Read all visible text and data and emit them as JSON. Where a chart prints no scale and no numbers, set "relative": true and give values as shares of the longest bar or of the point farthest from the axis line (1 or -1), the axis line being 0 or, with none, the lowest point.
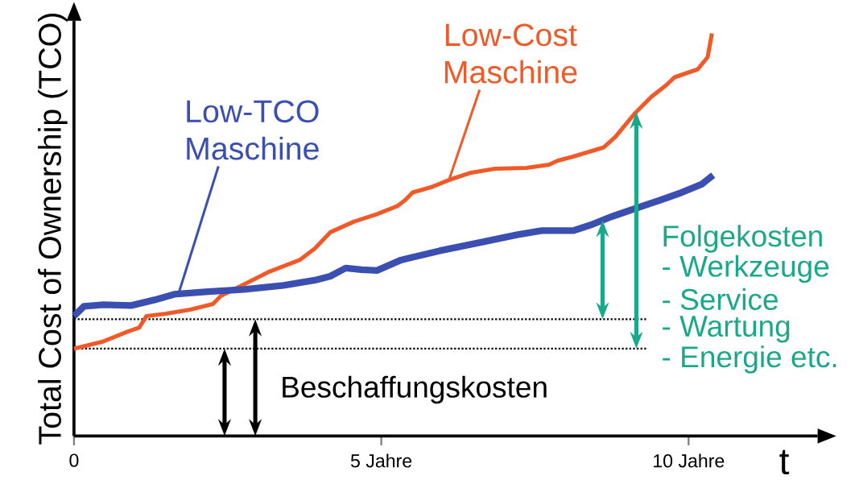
{
  "chart_data": {
    "type": "line",
    "relative": true,
    "ylabel": "Total Cost of Ownership (TCO)",
    "xlabel": "t",
    "xlim": [
      0,
      12.1
    ],
    "xticks": [
      {
        "value": 0,
        "label": "0"
      },
      {
        "value": 5,
        "label": "5 Jahre"
      },
      {
        "value": 10,
        "label": "10 Jahre"
      }
    ],
    "series": [
      {
        "name": "Low-Cost Maschine",
        "color": "#f05a28",
        "x": [
          0,
          0.48,
          0.87,
          1.06,
          1.18,
          1.5,
          1.89,
          2.26,
          2.39,
          2.77,
          3.16,
          3.67,
          3.92,
          4.17,
          4.55,
          4.93,
          5.26,
          5.38,
          5.51,
          5.83,
          6.14,
          6.46,
          6.85,
          7.36,
          7.73,
          7.87,
          8.12,
          8.62,
          8.81,
          9.13,
          9.39,
          9.64,
          9.77,
          10.15,
          10.31,
          10.38
        ],
        "values": [
          0.217,
          0.235,
          0.259,
          0.269,
          0.298,
          0.304,
          0.314,
          0.328,
          0.348,
          0.377,
          0.407,
          0.437,
          0.466,
          0.506,
          0.532,
          0.551,
          0.571,
          0.585,
          0.605,
          0.619,
          0.638,
          0.654,
          0.664,
          0.666,
          0.674,
          0.684,
          0.694,
          0.717,
          0.743,
          0.802,
          0.842,
          0.872,
          0.891,
          0.911,
          0.941,
          1
        ]
      },
      {
        "name": "Low-TCO Maschine",
        "color": "#3b4fb0",
        "x": [
          0,
          0.16,
          0.48,
          0.93,
          1.31,
          1.63,
          2.14,
          2.77,
          3.41,
          3.92,
          4.17,
          4.42,
          4.68,
          4.93,
          5.32,
          5.95,
          6.59,
          7.22,
          7.61,
          8.12,
          8.44,
          8.75,
          9.13,
          9.52,
          9.89,
          10.21,
          10.4
        ],
        "values": [
          0.298,
          0.322,
          0.326,
          0.324,
          0.338,
          0.352,
          0.358,
          0.364,
          0.374,
          0.387,
          0.397,
          0.417,
          0.413,
          0.411,
          0.437,
          0.46,
          0.48,
          0.5,
          0.51,
          0.51,
          0.526,
          0.545,
          0.565,
          0.585,
          0.605,
          0.625,
          0.648
        ]
      }
    ],
    "ref_lines": [
      {
        "axis": "y",
        "value": 0.29,
        "color": "#000000",
        "line_style": "dotted"
      },
      {
        "axis": "y",
        "value": 0.217,
        "color": "#000000",
        "line_style": "dotted"
      }
    ],
    "annotations": [
      "Beschaffungskosten",
      "Folgekosten",
      "- Werkzeuge",
      "- Service",
      "- Wartung",
      "- Energie etc."
    ]
  }
}
